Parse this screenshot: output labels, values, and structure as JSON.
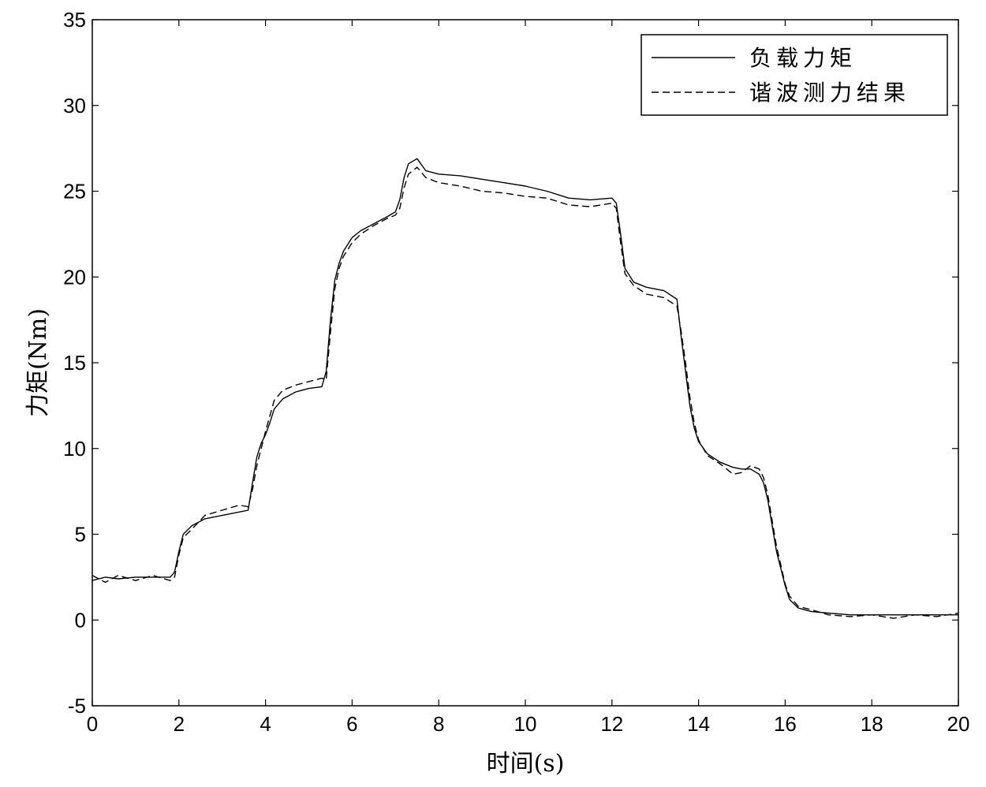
{
  "chart_data": {
    "type": "line",
    "xlabel": "时间(s)",
    "ylabel": "力矩(Nm)",
    "xlim": [
      0,
      20
    ],
    "ylim": [
      -5,
      35
    ],
    "x_ticks": [
      0,
      2,
      4,
      6,
      8,
      10,
      12,
      14,
      16,
      18,
      20
    ],
    "y_ticks": [
      -5,
      0,
      5,
      10,
      15,
      20,
      25,
      30,
      35
    ],
    "grid": false,
    "legend_position": "top-right",
    "series": [
      {
        "name": "负载力矩",
        "style": "solid",
        "color": "#000000",
        "x": [
          0,
          0.3,
          0.6,
          1.0,
          1.4,
          1.8,
          1.9,
          2.0,
          2.1,
          2.3,
          2.6,
          3.0,
          3.4,
          3.6,
          3.7,
          3.8,
          3.9,
          4.0,
          4.1,
          4.2,
          4.4,
          4.7,
          5.0,
          5.3,
          5.4,
          5.5,
          5.6,
          5.7,
          5.8,
          6.0,
          6.2,
          6.5,
          6.8,
          7.0,
          7.1,
          7.2,
          7.3,
          7.5,
          7.7,
          8.0,
          8.5,
          9.0,
          9.5,
          10.0,
          10.5,
          11.0,
          11.5,
          12.0,
          12.1,
          12.2,
          12.3,
          12.5,
          12.8,
          13.2,
          13.5,
          13.6,
          13.7,
          13.8,
          13.9,
          14.0,
          14.2,
          14.5,
          14.8,
          15.0,
          15.2,
          15.4,
          15.5,
          15.6,
          15.7,
          15.8,
          15.9,
          16.0,
          16.1,
          16.3,
          16.6,
          17.0,
          17.5,
          18.0,
          18.5,
          19.0,
          19.5,
          20.0
        ],
        "y": [
          2.3,
          2.5,
          2.4,
          2.5,
          2.5,
          2.5,
          2.8,
          4.0,
          5.0,
          5.5,
          5.9,
          6.1,
          6.3,
          6.4,
          8.0,
          9.5,
          10.3,
          10.8,
          11.5,
          12.3,
          12.9,
          13.3,
          13.5,
          13.6,
          14.5,
          17.5,
          19.8,
          20.8,
          21.5,
          22.3,
          22.7,
          23.1,
          23.5,
          23.8,
          24.5,
          25.8,
          26.6,
          26.9,
          26.2,
          26.0,
          25.9,
          25.7,
          25.5,
          25.3,
          25.0,
          24.6,
          24.5,
          24.6,
          24.3,
          22.5,
          20.5,
          19.7,
          19.4,
          19.2,
          18.7,
          16.5,
          14.5,
          12.5,
          11.2,
          10.4,
          9.7,
          9.2,
          8.9,
          8.8,
          8.8,
          8.5,
          8.0,
          7.0,
          5.5,
          4.0,
          3.0,
          2.0,
          1.2,
          0.7,
          0.5,
          0.4,
          0.3,
          0.3,
          0.3,
          0.3,
          0.3,
          0.3
        ]
      },
      {
        "name": "谐波测力结果",
        "style": "dashed",
        "color": "#000000",
        "x": [
          0,
          0.3,
          0.6,
          1.0,
          1.4,
          1.8,
          1.9,
          2.0,
          2.1,
          2.3,
          2.6,
          3.0,
          3.4,
          3.6,
          3.7,
          3.8,
          3.9,
          4.0,
          4.1,
          4.2,
          4.4,
          4.7,
          5.0,
          5.3,
          5.4,
          5.5,
          5.6,
          5.7,
          5.8,
          6.0,
          6.2,
          6.5,
          6.8,
          7.0,
          7.1,
          7.2,
          7.3,
          7.5,
          7.7,
          8.0,
          8.5,
          9.0,
          9.5,
          10.0,
          10.5,
          11.0,
          11.5,
          12.0,
          12.1,
          12.2,
          12.3,
          12.5,
          12.8,
          13.2,
          13.5,
          13.6,
          13.7,
          13.8,
          13.9,
          14.0,
          14.2,
          14.5,
          14.8,
          15.0,
          15.2,
          15.4,
          15.5,
          15.6,
          15.7,
          15.8,
          15.9,
          16.0,
          16.1,
          16.3,
          16.6,
          17.0,
          17.5,
          18.0,
          18.5,
          19.0,
          19.5,
          20.0
        ],
        "y": [
          2.6,
          2.2,
          2.6,
          2.3,
          2.6,
          2.3,
          2.5,
          3.8,
          4.8,
          5.3,
          6.1,
          6.4,
          6.7,
          6.6,
          7.6,
          9.0,
          10.0,
          11.0,
          11.9,
          12.8,
          13.4,
          13.7,
          13.9,
          14.1,
          14.0,
          16.8,
          19.3,
          20.5,
          21.2,
          22.0,
          22.5,
          23.0,
          23.4,
          23.6,
          24.0,
          25.2,
          26.0,
          26.4,
          25.8,
          25.5,
          25.3,
          25.0,
          24.9,
          24.7,
          24.6,
          24.2,
          24.1,
          24.3,
          24.0,
          22.0,
          20.2,
          19.5,
          19.0,
          18.8,
          18.3,
          16.8,
          15.0,
          13.0,
          11.5,
          10.5,
          9.6,
          9.1,
          8.5,
          8.6,
          9.0,
          8.8,
          8.3,
          7.3,
          5.8,
          4.3,
          3.2,
          2.1,
          1.4,
          0.8,
          0.6,
          0.3,
          0.2,
          0.3,
          0.1,
          0.3,
          0.2,
          0.4
        ]
      }
    ]
  }
}
